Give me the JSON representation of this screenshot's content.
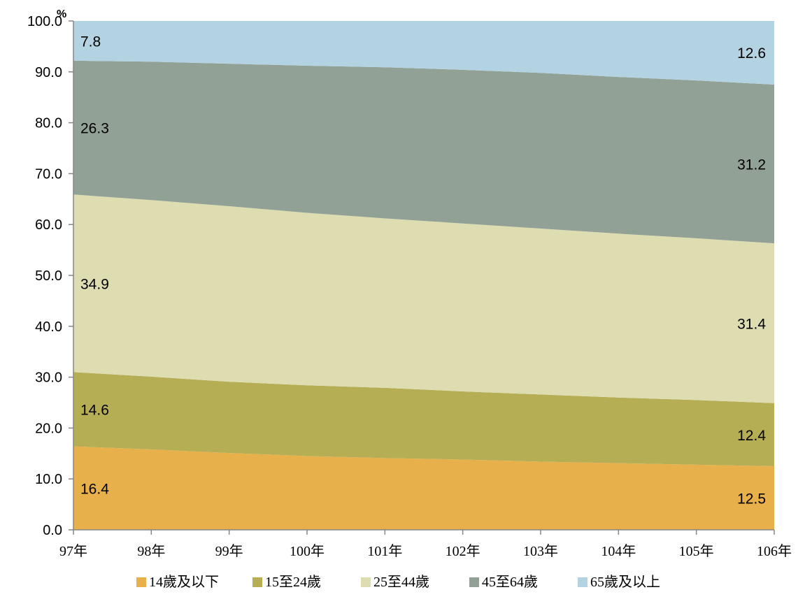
{
  "chart_data": {
    "type": "area",
    "stacked": true,
    "x": [
      "97年",
      "98年",
      "99年",
      "100年",
      "101年",
      "102年",
      "103年",
      "104年",
      "105年",
      "106年"
    ],
    "ylabel": "%",
    "ylim": [
      0,
      100
    ],
    "yticks": [
      "0.0",
      "10.0",
      "20.0",
      "30.0",
      "40.0",
      "50.0",
      "60.0",
      "70.0",
      "80.0",
      "90.0",
      "100.0"
    ],
    "legend_position": "bottom",
    "grid": false,
    "series": [
      {
        "name": "14歲及以下",
        "color": "#E8B04A",
        "values": [
          16.4,
          15.8,
          15.1,
          14.5,
          14.1,
          13.8,
          13.4,
          13.1,
          12.8,
          12.5
        ],
        "label_first": "16.4",
        "label_last": "12.5"
      },
      {
        "name": "15至24歲",
        "color": "#B6AE55",
        "values": [
          14.6,
          14.3,
          14.0,
          13.9,
          13.8,
          13.4,
          13.2,
          12.9,
          12.7,
          12.4
        ],
        "label_first": "14.6",
        "label_last": "12.4"
      },
      {
        "name": "25至44歲",
        "color": "#DDDDB1",
        "values": [
          34.9,
          34.7,
          34.5,
          33.9,
          33.3,
          33.0,
          32.6,
          32.2,
          31.8,
          31.4
        ],
        "label_first": "34.9",
        "label_last": "31.4"
      },
      {
        "name": "45至64歲",
        "color": "#92A195",
        "values": [
          26.3,
          27.2,
          28.0,
          28.9,
          29.7,
          30.2,
          30.6,
          30.8,
          31.0,
          31.2
        ],
        "label_first": "26.3",
        "label_last": "31.2"
      },
      {
        "name": "65歲及以上",
        "color": "#B3D2E2",
        "values": [
          7.8,
          8.0,
          8.4,
          8.8,
          9.1,
          9.6,
          10.2,
          11.0,
          11.7,
          12.6
        ],
        "label_first": "7.8",
        "label_last": "12.6"
      }
    ]
  }
}
